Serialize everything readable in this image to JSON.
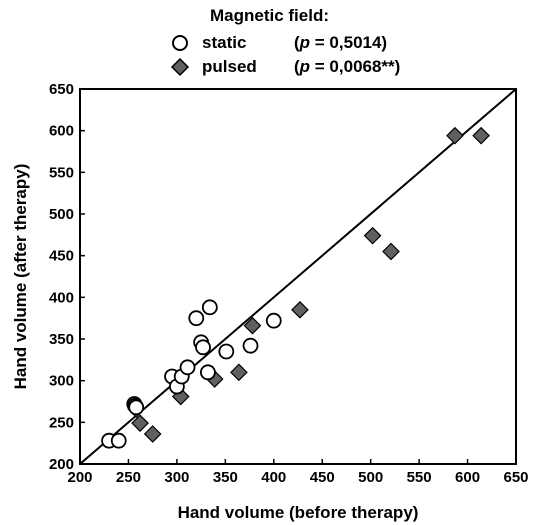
{
  "legend": {
    "title": "Magnetic field:",
    "items": [
      {
        "label": "static",
        "stat_prefix": "(",
        "stat_var": "p",
        "stat_value": " = 0,5014)",
        "marker": "circle"
      },
      {
        "label": "pulsed",
        "stat_prefix": "(",
        "stat_var": "p",
        "stat_value": " = 0,0068**)",
        "marker": "diamond"
      }
    ]
  },
  "chart_data": {
    "type": "scatter",
    "xlabel": "Hand volume  (before therapy)",
    "ylabel": "Hand volume  (after therapy)",
    "xlim": [
      200,
      650
    ],
    "ylim": [
      200,
      650
    ],
    "x_ticks": [
      200,
      250,
      300,
      350,
      400,
      450,
      500,
      550,
      600,
      650
    ],
    "y_ticks": [
      200,
      250,
      300,
      350,
      400,
      450,
      500,
      550,
      600,
      650
    ],
    "grid": false,
    "legend_position": "top-center",
    "reference_line": {
      "type": "identity",
      "from": [
        200,
        200
      ],
      "to": [
        650,
        650
      ]
    },
    "series": [
      {
        "name": "static",
        "marker": "circle",
        "fill": "#ffffff",
        "points": [
          [
            230,
            228
          ],
          [
            240,
            228
          ],
          [
            256,
            272
          ],
          [
            257,
            270
          ],
          [
            258,
            268
          ],
          [
            295,
            305
          ],
          [
            300,
            293
          ],
          [
            305,
            305
          ],
          [
            311,
            316
          ],
          [
            320,
            375
          ],
          [
            325,
            346
          ],
          [
            327,
            340
          ],
          [
            332,
            310
          ],
          [
            334,
            388
          ],
          [
            351,
            335
          ],
          [
            376,
            342
          ],
          [
            400,
            372
          ]
        ]
      },
      {
        "name": "pulsed",
        "marker": "diamond",
        "fill": "#606060",
        "points": [
          [
            258,
            266
          ],
          [
            262,
            249
          ],
          [
            275,
            236
          ],
          [
            304,
            281
          ],
          [
            339,
            302
          ],
          [
            364,
            310
          ],
          [
            378,
            366
          ],
          [
            427,
            385
          ],
          [
            502,
            474
          ],
          [
            521,
            455
          ],
          [
            587,
            594
          ],
          [
            614,
            594
          ]
        ]
      }
    ]
  }
}
